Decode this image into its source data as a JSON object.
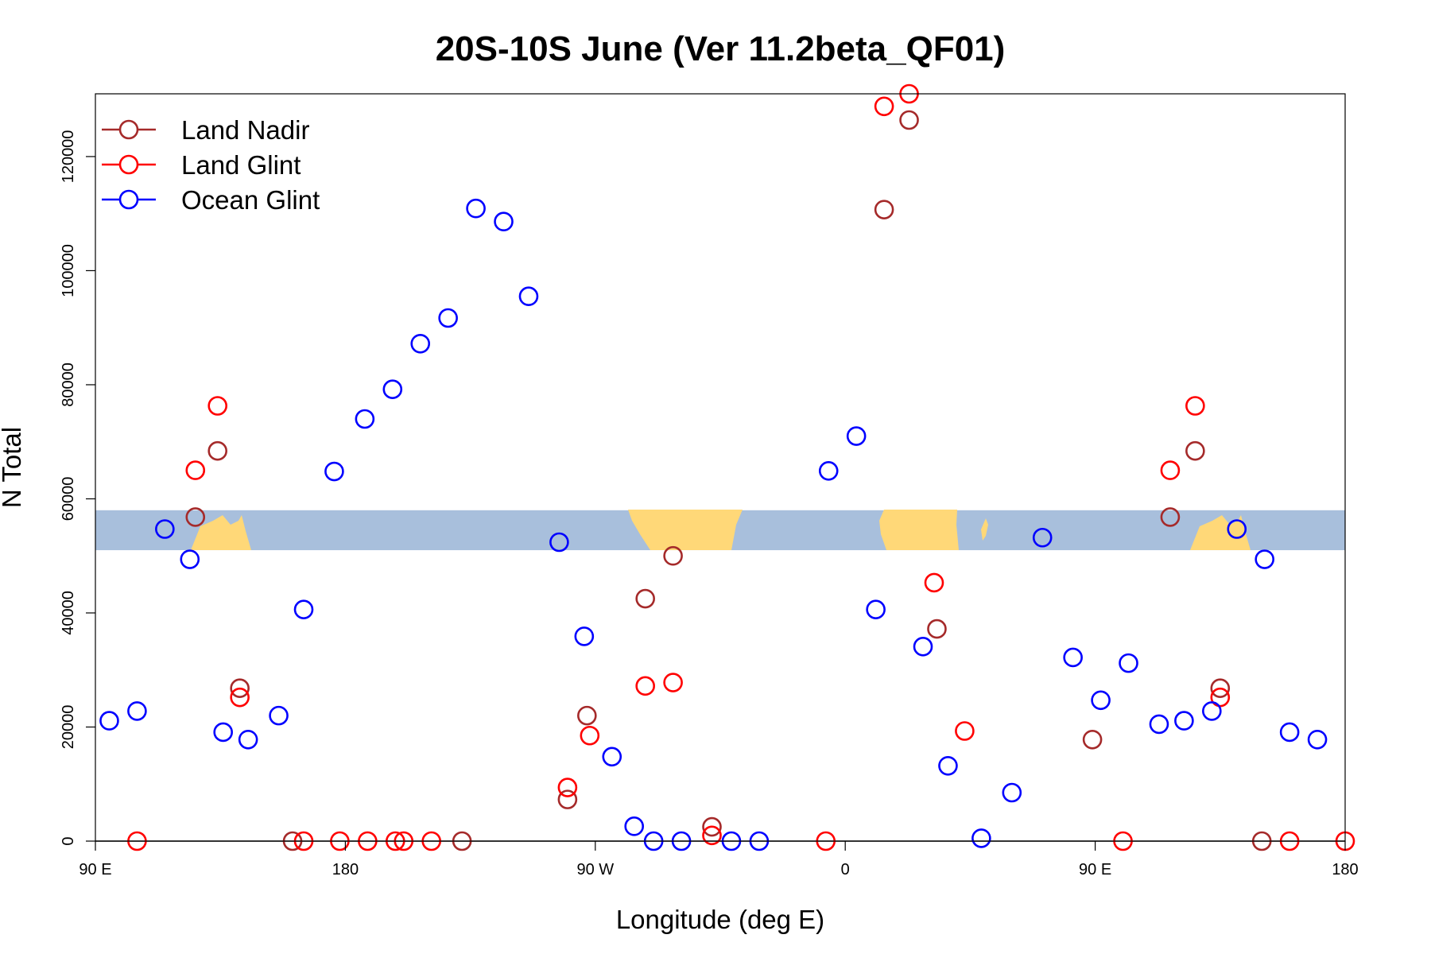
{
  "chart_data": {
    "type": "scatter",
    "title": "20S-10S June (Ver 11.2beta_QF01)",
    "xlabel": "Longitude (deg E)",
    "ylabel": "N Total",
    "xlim": [
      90,
      540
    ],
    "ylim": [
      0,
      131000
    ],
    "x_ticks": [
      {
        "value": 90,
        "label": "90 E"
      },
      {
        "value": 180,
        "label": "180"
      },
      {
        "value": 270,
        "label": "90 W"
      },
      {
        "value": 360,
        "label": "0"
      },
      {
        "value": 450,
        "label": "90 E"
      },
      {
        "value": 540,
        "label": "180"
      }
    ],
    "y_ticks": [
      {
        "value": 0,
        "label": "0"
      },
      {
        "value": 20000,
        "label": "20000"
      },
      {
        "value": 40000,
        "label": "40000"
      },
      {
        "value": 60000,
        "label": "60000"
      },
      {
        "value": 80000,
        "label": "80000"
      },
      {
        "value": 100000,
        "label": "100000"
      },
      {
        "value": 120000,
        "label": "120000"
      }
    ],
    "map_strip": {
      "ymin": 51000,
      "ymax": 58000,
      "ocean_color": "#a8bfdc",
      "land_color": "#ffd878"
    },
    "zero_line": {
      "y": 0,
      "color": "#808080"
    },
    "legend_position": "top-left",
    "grid": false,
    "series": [
      {
        "name": "Land Nadir",
        "color": "#a52a2a",
        "x": [
          126,
          134,
          142,
          161,
          222,
          260,
          267,
          288,
          298,
          312,
          374,
          383,
          393,
          449,
          477,
          486,
          495,
          510
        ],
        "y": [
          56800,
          68400,
          26800,
          0,
          0,
          7300,
          22000,
          42500,
          50000,
          2500,
          110700,
          126400,
          37200,
          17800,
          56800,
          68400,
          26800,
          0
        ]
      },
      {
        "name": "Land Glint",
        "color": "#ff0000",
        "x": [
          105,
          126,
          134,
          142,
          165,
          178,
          188,
          198,
          201,
          211,
          260,
          268,
          288,
          298,
          312,
          353,
          374,
          383,
          392,
          403,
          460,
          477,
          486,
          495,
          520,
          540
        ],
        "y": [
          0,
          65000,
          76300,
          25200,
          0,
          0,
          0,
          0,
          0,
          0,
          9400,
          18500,
          27200,
          27800,
          1000,
          0,
          128800,
          131000,
          45300,
          19300,
          0,
          65000,
          76300,
          25200,
          0,
          0
        ]
      },
      {
        "name": "Ocean Glint",
        "color": "#0000ff",
        "x": [
          95,
          105,
          115,
          124,
          136,
          145,
          156,
          165,
          176,
          187,
          197,
          207,
          217,
          227,
          237,
          246,
          257,
          266,
          276,
          284,
          291,
          301,
          319,
          329,
          354,
          364,
          371,
          388,
          397,
          409,
          420,
          431,
          442,
          452,
          462,
          473,
          482,
          492,
          501,
          511,
          520,
          530
        ],
        "y": [
          21100,
          22800,
          54700,
          49400,
          19100,
          17800,
          22000,
          40600,
          64800,
          74000,
          79200,
          87200,
          91700,
          110900,
          108600,
          95500,
          52400,
          35900,
          14800,
          2600,
          0,
          0,
          0,
          0,
          64900,
          71000,
          40600,
          34100,
          13200,
          500,
          8500,
          53200,
          32200,
          24700,
          31200,
          20500,
          21100,
          22800,
          54700,
          49400,
          19100,
          17800
        ]
      }
    ]
  }
}
